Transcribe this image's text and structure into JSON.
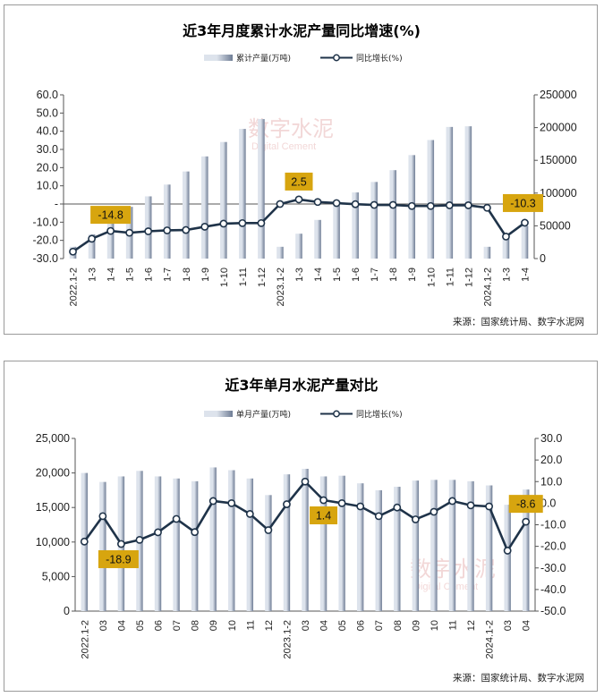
{
  "chart_data": [
    {
      "type": "bar",
      "title": "近3年月度累计水泥产量同比增速(%)",
      "legend": [
        "累计产量(万吨)",
        "同比增长(%)"
      ],
      "legend_placement": "top-center",
      "source": "来源：国家统计局、数字水泥网",
      "watermark": "数字水泥",
      "watermark_sub": "Digital Cement",
      "categories": [
        "2022.1-2",
        "1-3",
        "1-4",
        "1-5",
        "1-6",
        "1-7",
        "1-8",
        "1-9",
        "1-10",
        "1-11",
        "1-12",
        "2023.1-2",
        "1-3",
        "1-4",
        "1-5",
        "1-6",
        "1-7",
        "1-8",
        "1-9",
        "1-10",
        "1-11",
        "1-12",
        "2024.1-2",
        "1-3",
        "1-4"
      ],
      "left_axis": {
        "ticks": [
          "60.0",
          "50.0",
          "40.0",
          "30.0",
          "20.0",
          "10.0",
          "-",
          "-10.0",
          "-20.0",
          "-30.0"
        ],
        "ylim": [
          -30,
          60
        ]
      },
      "right_axis": {
        "ticks": [
          "250000",
          "200000",
          "150000",
          "100000",
          "50000",
          "0"
        ],
        "ylim": [
          0,
          250000
        ]
      },
      "series": [
        {
          "name": "累计产量(万吨)",
          "axis": "right",
          "kind": "bar",
          "values": [
            18000,
            37000,
            56000,
            79000,
            95000,
            113000,
            133000,
            156000,
            178000,
            198000,
            213000,
            18000,
            38000,
            59000,
            81000,
            101000,
            117000,
            135000,
            158000,
            181000,
            201000,
            202000,
            18000,
            33000,
            50000
          ]
        },
        {
          "name": "同比增长(%)",
          "axis": "left",
          "kind": "line",
          "values": [
            -26.2,
            -19.1,
            -14.8,
            -15.8,
            -15.0,
            -14.5,
            -14.3,
            -12.5,
            -10.8,
            -10.5,
            -10.5,
            0.0,
            2.5,
            1.1,
            0.5,
            -0.1,
            -0.5,
            -0.5,
            -1.1,
            -1.1,
            -0.7,
            -0.7,
            -2.1,
            -17.9,
            -10.3
          ]
        }
      ],
      "callouts": [
        {
          "index": 2,
          "text": "-14.8"
        },
        {
          "index": 12,
          "text": "2.5"
        },
        {
          "index": 24,
          "text": "-10.3"
        }
      ]
    },
    {
      "type": "bar",
      "title": "近3年单月水泥产量对比",
      "legend": [
        "单月产量(万吨)",
        "同比增长(%)"
      ],
      "legend_placement": "top-center",
      "source": "来源：国家统计局、数字水泥网",
      "watermark": "数字水泥",
      "watermark_sub": "Digital Cement",
      "categories": [
        "2022.1-2",
        "03",
        "04",
        "05",
        "06",
        "07",
        "08",
        "09",
        "10",
        "11",
        "12",
        "2023.1-2",
        "03",
        "04",
        "05",
        "06",
        "07",
        "08",
        "09",
        "10",
        "11",
        "12",
        "2024.1-2",
        "03",
        "04"
      ],
      "left_axis": {
        "ticks": [
          "25,000",
          "20,000",
          "15,000",
          "10,000",
          "5,000",
          "0"
        ],
        "ylim": [
          0,
          25000
        ]
      },
      "right_axis": {
        "ticks": [
          "30.0",
          "20.0",
          "10.0",
          "0.0",
          "-10.0",
          "-20.0",
          "-30.0",
          "-40.0",
          "-50.0"
        ],
        "ylim": [
          -50,
          30
        ]
      },
      "series": [
        {
          "name": "单月产量(万吨)",
          "axis": "left",
          "kind": "bar",
          "values": [
            20000,
            18700,
            19500,
            20300,
            19500,
            19200,
            18800,
            20800,
            20400,
            19200,
            16800,
            19800,
            20600,
            19500,
            19600,
            18500,
            17500,
            18000,
            18900,
            19000,
            19000,
            18800,
            18200,
            15400,
            17600
          ]
        },
        {
          "name": "同比增长(%)",
          "axis": "right",
          "kind": "line",
          "values": [
            -17.8,
            -6.0,
            -18.9,
            -17.0,
            -13.5,
            -7.3,
            -13.4,
            1.0,
            0.0,
            -5.0,
            -12.5,
            -0.5,
            10.0,
            1.4,
            0.0,
            -1.5,
            -6.0,
            -2.0,
            -7.5,
            -4.0,
            1.0,
            -1.0,
            -1.5,
            -22.0,
            -8.6
          ]
        }
      ],
      "callouts": [
        {
          "index": 2,
          "text": "-18.9"
        },
        {
          "index": 13,
          "text": "1.4"
        },
        {
          "index": 24,
          "text": "-8.6"
        }
      ]
    }
  ],
  "colors": {
    "bar_light": "#dde3ec",
    "bar_dark": "#6f7d95",
    "line": "#1f3349",
    "marker_fill": "#ffffff",
    "callout": "#d7a50f",
    "axis": "#555555"
  }
}
